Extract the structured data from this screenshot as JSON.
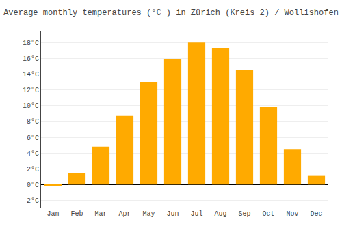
{
  "chart_data": {
    "type": "bar",
    "title": "Average monthly temperatures (°C ) in Zürich (Kreis 2) / Wollishofen",
    "categories": [
      "Jan",
      "Feb",
      "Mar",
      "Apr",
      "May",
      "Jun",
      "Jul",
      "Aug",
      "Sep",
      "Oct",
      "Nov",
      "Dec"
    ],
    "values": [
      -0.1,
      1.5,
      4.8,
      8.7,
      13.0,
      15.9,
      18.0,
      17.3,
      14.5,
      9.8,
      4.5,
      1.1
    ],
    "color": "#FFAA00",
    "ylim": [
      -3,
      19.5
    ],
    "yticks": [
      {
        "value": -2,
        "label": "-2°C"
      },
      {
        "value": 0,
        "label": "0°C"
      },
      {
        "value": 2,
        "label": "2°C"
      },
      {
        "value": 4,
        "label": "4°C"
      },
      {
        "value": 6,
        "label": "6°C"
      },
      {
        "value": 8,
        "label": "8°C"
      },
      {
        "value": 10,
        "label": "10°C"
      },
      {
        "value": 12,
        "label": "12°C"
      },
      {
        "value": 14,
        "label": "14°C"
      },
      {
        "value": 16,
        "label": "16°C"
      },
      {
        "value": 18,
        "label": "18°C"
      }
    ],
    "grid": true
  }
}
